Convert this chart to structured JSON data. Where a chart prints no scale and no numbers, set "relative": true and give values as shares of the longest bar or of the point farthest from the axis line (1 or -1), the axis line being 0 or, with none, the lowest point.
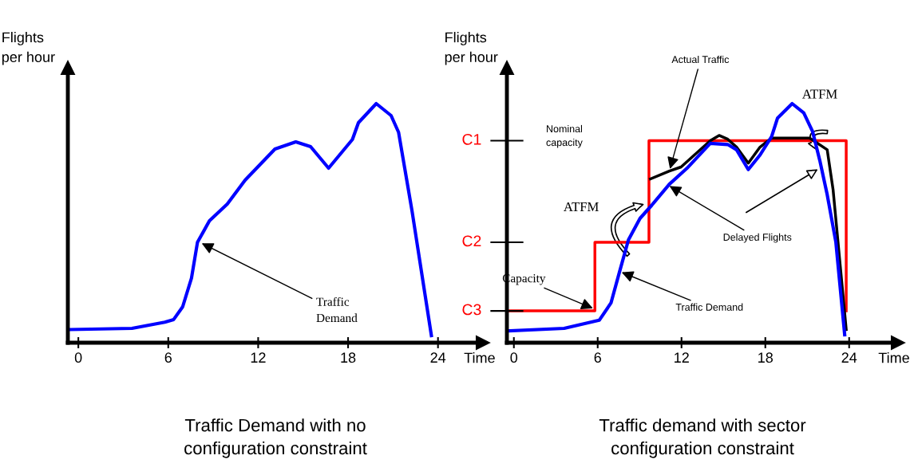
{
  "chart_data": [
    {
      "type": "line",
      "title": "Traffic Demand with no\nconfiguration constraint",
      "xlabel": "Time",
      "ylabel": "Flights\nper hour",
      "relative": true,
      "xlim": [
        -0.7,
        27
      ],
      "xticks": [
        0,
        6,
        12,
        18,
        24
      ],
      "grid": false,
      "legend": false,
      "series": [
        {
          "color": "#0000ff",
          "x": [
            -0.5,
            3.58,
            5.77,
            6.36,
            6.96,
            7.55,
            7.95,
            8.75,
            9.94,
            11.13,
            13.12,
            14.51,
            15.5,
            16.7,
            18.29,
            18.69,
            19.88,
            20.87,
            21.37,
            22.27,
            23.56
          ],
          "values": [
            0.055,
            0.06,
            0.086,
            0.097,
            0.15,
            0.27,
            0.42,
            0.51,
            0.58,
            0.68,
            0.81,
            0.84,
            0.82,
            0.73,
            0.85,
            0.92,
            1.0,
            0.95,
            0.88,
            0.55,
            0.03
          ]
        }
      ],
      "annotations": [
        {
          "text": "Traffic\nDemand",
          "x": 8.1,
          "y": 0.42
        }
      ]
    },
    {
      "type": "line",
      "title": "Traffic demand with sector\nconfiguration constraint",
      "xlabel": "Time",
      "ylabel": "Flights\nper hour",
      "relative": true,
      "xlim": [
        -0.5,
        27.5
      ],
      "xticks": [
        0,
        6,
        12,
        18,
        24
      ],
      "grid": false,
      "legend": false,
      "series": [
        {
          "color": "#ff0000",
          "x": [
            -0.3,
            5.8,
            5.8,
            9.67,
            9.67,
            23.79,
            23.79
          ],
          "values": [
            0.133,
            0.133,
            0.42,
            0.42,
            0.845,
            0.845,
            0.133
          ]
        },
        {
          "color": "#000000",
          "x": [
            9.77,
            11.13,
            11.97,
            14.06,
            14.69,
            15.31,
            15.94,
            16.78,
            17.62,
            18.45,
            21.17,
            22.43,
            22.85,
            23.79
          ],
          "values": [
            0.685,
            0.718,
            0.735,
            0.845,
            0.867,
            0.851,
            0.818,
            0.751,
            0.818,
            0.856,
            0.856,
            0.807,
            0.64,
            0.055
          ]
        },
        {
          "color": "#0000ff",
          "x": [
            -0.27,
            3.6,
            6.11,
            6.95,
            7.57,
            8.2,
            9.03,
            9.87,
            11.13,
            12.38,
            14.06,
            15.31,
            15.94,
            16.78,
            17.62,
            18.45,
            18.87,
            19.92,
            20.75,
            21.38,
            21.9,
            22.43,
            23.05,
            23.68
          ],
          "values": [
            0.05,
            0.06,
            0.094,
            0.166,
            0.298,
            0.43,
            0.52,
            0.575,
            0.663,
            0.729,
            0.834,
            0.829,
            0.807,
            0.724,
            0.785,
            0.862,
            0.939,
            1.0,
            0.961,
            0.884,
            0.762,
            0.619,
            0.42,
            0.033
          ]
        }
      ],
      "annotations": [
        "C1",
        "C2",
        "C3",
        "Nominal\ncapacity",
        {
          "text": "Actual Traffic",
          "x": 11.13,
          "y": 0.718
        },
        "ATFM",
        "ATFM",
        {
          "text": "Delayed Flights",
          "x": 11.0,
          "y": 0.66
        },
        {
          "text": "Capacity",
          "x": 5.8,
          "y": 0.14
        },
        {
          "text": "Traffic Demand",
          "x": 7.57,
          "y": 0.298
        }
      ]
    }
  ]
}
